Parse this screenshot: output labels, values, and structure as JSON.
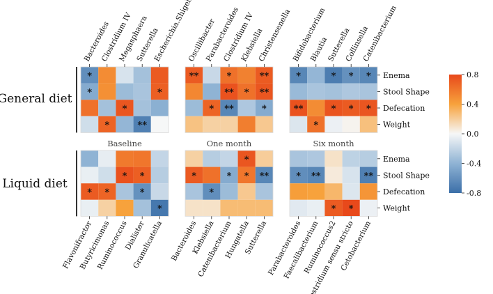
{
  "chart_data": {
    "type": "heatmap",
    "title": "",
    "row_labels": [
      "Enema",
      "Stool Shape",
      "Defecation",
      "Weight"
    ],
    "groups": [
      "General diet",
      "Liquid diet"
    ],
    "timepoints": [
      "Baseline",
      "One month",
      "Six month"
    ],
    "colorbar": {
      "min": -0.8,
      "max": 0.8,
      "ticks": [
        "0.8",
        "0.4",
        "0.0",
        "-0.4",
        "-0.8"
      ]
    },
    "panels": [
      {
        "group": "General diet",
        "timepoint": "Baseline",
        "columns": [
          "Bacteroides",
          "Clostridium IV",
          "Megasphaera",
          "Sutterella",
          "Escherichia.Shigella"
        ],
        "values": [
          [
            -0.62,
            0.5,
            -0.12,
            -0.32,
            0.72
          ],
          [
            -0.45,
            0.48,
            -0.35,
            -0.3,
            0.7
          ],
          [
            0.62,
            -0.32,
            0.74,
            -0.32,
            -0.42
          ],
          [
            -0.15,
            0.68,
            -0.38,
            -0.7,
            0.0
          ]
        ],
        "stars": [
          [
            "*",
            "",
            "",
            "",
            ""
          ],
          [
            "*",
            "",
            "",
            "",
            "*"
          ],
          [
            "",
            "",
            "*",
            "",
            ""
          ],
          [
            "",
            "*",
            "",
            "**",
            ""
          ]
        ]
      },
      {
        "group": "General diet",
        "timepoint": "One month",
        "columns": [
          "Oscillibacter",
          "Parabacteroides",
          "Clostridium IV",
          "Klebsiella",
          "Christensenella"
        ],
        "values": [
          [
            0.72,
            -0.18,
            0.62,
            0.55,
            0.72
          ],
          [
            0.52,
            -0.4,
            0.76,
            0.62,
            0.74
          ],
          [
            -0.35,
            0.68,
            -0.66,
            -0.28,
            -0.45
          ],
          [
            0.25,
            0.18,
            0.18,
            0.56,
            0.22
          ]
        ],
        "stars": [
          [
            "**",
            "",
            "*",
            "",
            "**"
          ],
          [
            "",
            "",
            "**",
            "*",
            "**"
          ],
          [
            "",
            "*",
            "**",
            "",
            "*"
          ],
          [
            "",
            "",
            "",
            "",
            ""
          ]
        ]
      },
      {
        "group": "General diet",
        "timepoint": "Six month",
        "columns": [
          "Bifidobacterium",
          "Blautia",
          "Sutterella",
          "Collinsella",
          "Catenibacterium"
        ],
        "values": [
          [
            -0.66,
            -0.38,
            -0.72,
            -0.6,
            -0.66
          ],
          [
            -0.36,
            -0.3,
            -0.32,
            -0.28,
            -0.3
          ],
          [
            0.76,
            0.5,
            0.75,
            0.72,
            0.74
          ],
          [
            -0.1,
            0.62,
            -0.04,
            0.02,
            0.26
          ]
        ],
        "stars": [
          [
            "*",
            "",
            "*",
            "*",
            "*"
          ],
          [
            "",
            "",
            "",
            "",
            ""
          ],
          [
            "**",
            "",
            "*",
            "*",
            "*"
          ],
          [
            "",
            "*",
            "",
            "",
            ""
          ]
        ]
      },
      {
        "group": "Liquid diet",
        "timepoint": "Baseline",
        "columns": [
          "Flavonifractor",
          "Butyricimonas",
          "Ruminococcus",
          "Dialister",
          "Granulicatella"
        ],
        "values": [
          [
            -0.4,
            -0.06,
            0.58,
            0.6,
            -0.2
          ],
          [
            -0.05,
            -0.15,
            0.76,
            0.7,
            -0.25
          ],
          [
            0.72,
            0.68,
            -0.3,
            -0.6,
            -0.18
          ],
          [
            -0.05,
            0.18,
            0.4,
            -0.32,
            -0.75
          ]
        ],
        "stars": [
          [
            "",
            "",
            "",
            "",
            ""
          ],
          [
            "",
            "",
            "*",
            "*",
            ""
          ],
          [
            "*",
            "*",
            "",
            "*",
            ""
          ],
          [
            "",
            "",
            "",
            "",
            "*"
          ]
        ]
      },
      {
        "group": "Liquid diet",
        "timepoint": "One month",
        "columns": [
          "Bacteroides",
          "Klebsiella",
          "Catenibacterium",
          "Hungatella",
          "Sutterella"
        ],
        "values": [
          [
            0.18,
            -0.25,
            -0.2,
            0.74,
            0.2
          ],
          [
            0.72,
            0.62,
            -0.45,
            0.6,
            -0.66
          ],
          [
            -0.3,
            -0.62,
            -0.35,
            0.22,
            -0.3
          ],
          [
            0.1,
            0.1,
            0.28,
            0.28,
            0.28
          ]
        ],
        "stars": [
          [
            "",
            "",
            "",
            "*",
            ""
          ],
          [
            "*",
            "",
            "*",
            "*",
            "**"
          ],
          [
            "",
            "*",
            "",
            "",
            ""
          ],
          [
            "",
            "",
            "",
            "",
            ""
          ]
        ]
      },
      {
        "group": "Liquid diet",
        "timepoint": "Six month",
        "columns": [
          "Parabacteroides",
          "Faecalibacterium",
          "Ruminococcus2",
          "Clostridium sensu stricto",
          "Cetobacterium"
        ],
        "values": [
          [
            -0.3,
            -0.28,
            0.1,
            -0.22,
            -0.25
          ],
          [
            -0.62,
            -0.66,
            0.06,
            -0.12,
            -0.7
          ],
          [
            0.42,
            0.4,
            0.3,
            -0.1,
            0.46
          ],
          [
            -0.08,
            -0.05,
            0.72,
            0.8,
            -0.04
          ]
        ],
        "stars": [
          [
            "",
            "",
            "",
            "",
            ""
          ],
          [
            "*",
            "**",
            "",
            "",
            "**"
          ],
          [
            "",
            "",
            "",
            "",
            ""
          ],
          [
            "",
            "",
            "*",
            "*",
            ""
          ]
        ]
      }
    ]
  }
}
